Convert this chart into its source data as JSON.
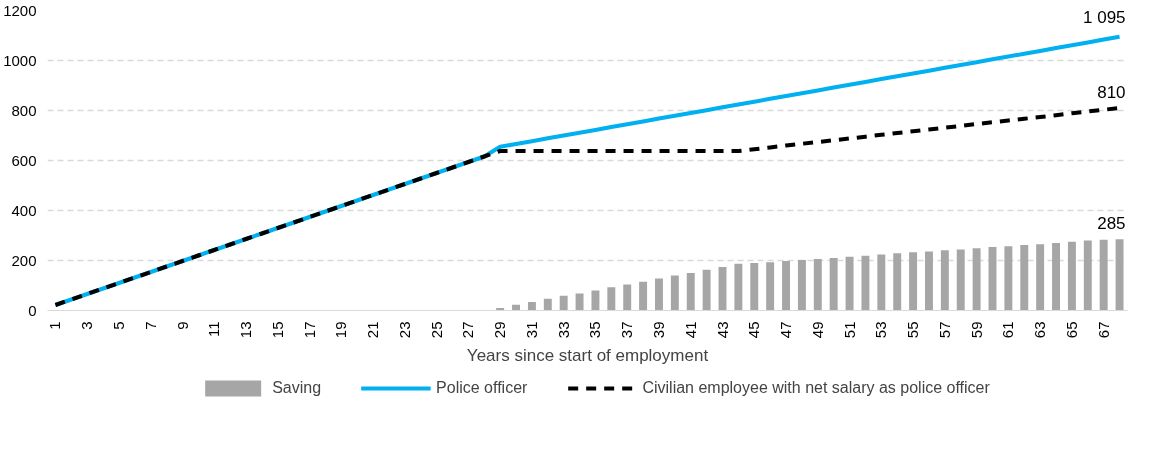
{
  "chart_data": {
    "type": "line",
    "xlabel": "Years since start of employment",
    "categories": [
      "1",
      null,
      "3",
      null,
      "5",
      null,
      "7",
      null,
      "9",
      null,
      "11",
      null,
      "13",
      null,
      "15",
      null,
      "17",
      null,
      "19",
      null,
      "21",
      null,
      "23",
      null,
      "25",
      null,
      "27",
      null,
      "29",
      null,
      "31",
      null,
      "33",
      null,
      "35",
      null,
      "37",
      null,
      "39",
      null,
      "41",
      null,
      "43",
      null,
      "45",
      null,
      "47",
      null,
      "49",
      null,
      "51",
      null,
      "53",
      null,
      "55",
      null,
      "57",
      null,
      "59",
      null,
      "61",
      null,
      "63",
      null,
      "65",
      null,
      "67",
      null
    ],
    "series": [
      {
        "name": "Saving",
        "type": "bar",
        "color": "#a6a6a6",
        "values": [
          null,
          null,
          null,
          null,
          null,
          null,
          null,
          null,
          null,
          null,
          null,
          null,
          null,
          null,
          null,
          null,
          null,
          null,
          null,
          null,
          null,
          null,
          null,
          null,
          null,
          null,
          null,
          null,
          10,
          23,
          34,
          47,
          59,
          68,
          80,
          93,
          104,
          115,
          128,
          140,
          150,
          163,
          174,
          187,
          190,
          193,
          198,
          202,
          206,
          210,
          215,
          219,
          224,
          229,
          233,
          236,
          241,
          244,
          249,
          254,
          257,
          262,
          265,
          270,
          275,
          280,
          283,
          285
        ],
        "value_labels": [
          null,
          null,
          null,
          null,
          null,
          null,
          null,
          null,
          null,
          null,
          null,
          null,
          null,
          null,
          null,
          null,
          null,
          null,
          null,
          null,
          null,
          null,
          null,
          null,
          null,
          null,
          null,
          null,
          null,
          null,
          null,
          null,
          null,
          null,
          null,
          null,
          null,
          null,
          null,
          null,
          null,
          null,
          null,
          null,
          null,
          null,
          null,
          null,
          null,
          null,
          null,
          null,
          null,
          null,
          null,
          null,
          null,
          null,
          null,
          null,
          null,
          null,
          null,
          null,
          null,
          null,
          null,
          "285"
        ]
      },
      {
        "name": "Police officer",
        "color": "#00b0f0",
        "line_style": "solid",
        "values": [
          22,
          44,
          66,
          88,
          110,
          132,
          154,
          176,
          198,
          220,
          242,
          264,
          286,
          308,
          330,
          352,
          374,
          396,
          418,
          440,
          462,
          484,
          506,
          528,
          550,
          572,
          594,
          616,
          655,
          666,
          677,
          689,
          700,
          711,
          722,
          734,
          745,
          756,
          768,
          779,
          790,
          801,
          813,
          824,
          835,
          847,
          858,
          869,
          880,
          892,
          903,
          914,
          926,
          937,
          948,
          959,
          971,
          982,
          993,
          1005,
          1016,
          1027,
          1038,
          1050,
          1061,
          1072,
          1084,
          1095
        ],
        "value_labels": [
          null,
          null,
          null,
          null,
          null,
          null,
          null,
          null,
          null,
          null,
          null,
          null,
          null,
          null,
          null,
          null,
          null,
          null,
          null,
          null,
          null,
          null,
          null,
          null,
          null,
          null,
          null,
          null,
          null,
          null,
          null,
          null,
          null,
          null,
          null,
          null,
          null,
          null,
          null,
          null,
          null,
          null,
          null,
          null,
          null,
          null,
          null,
          null,
          null,
          null,
          null,
          null,
          null,
          null,
          null,
          null,
          null,
          null,
          null,
          null,
          null,
          null,
          null,
          null,
          null,
          null,
          null,
          "1 095"
        ]
      },
      {
        "name": "Civilian employee with net salary as police officer",
        "color": "#000000",
        "line_style": "dashed",
        "values": [
          22,
          44,
          66,
          88,
          110,
          132,
          154,
          176,
          198,
          220,
          242,
          264,
          286,
          308,
          330,
          352,
          374,
          396,
          418,
          440,
          462,
          484,
          506,
          528,
          550,
          572,
          594,
          616,
          638,
          638,
          638,
          638,
          638,
          638,
          638,
          638,
          638,
          638,
          638,
          638,
          638,
          638,
          638,
          638,
          645,
          652,
          660,
          667,
          674,
          681,
          688,
          695,
          703,
          710,
          717,
          724,
          731,
          738,
          746,
          753,
          760,
          767,
          774,
          781,
          789,
          796,
          803,
          810
        ],
        "value_labels": [
          null,
          null,
          null,
          null,
          null,
          null,
          null,
          null,
          null,
          null,
          null,
          null,
          null,
          null,
          null,
          null,
          null,
          null,
          null,
          null,
          null,
          null,
          null,
          null,
          null,
          null,
          null,
          null,
          null,
          null,
          null,
          null,
          null,
          null,
          null,
          null,
          null,
          null,
          null,
          null,
          null,
          null,
          null,
          null,
          null,
          null,
          null,
          null,
          null,
          null,
          null,
          null,
          null,
          null,
          null,
          null,
          null,
          null,
          null,
          null,
          null,
          null,
          null,
          null,
          null,
          null,
          null,
          "810"
        ]
      }
    ],
    "ylim": [
      0,
      1200
    ],
    "yticks": [
      0,
      200,
      400,
      600,
      800,
      1000,
      1200
    ],
    "grid": "y",
    "legend": "bottom"
  }
}
